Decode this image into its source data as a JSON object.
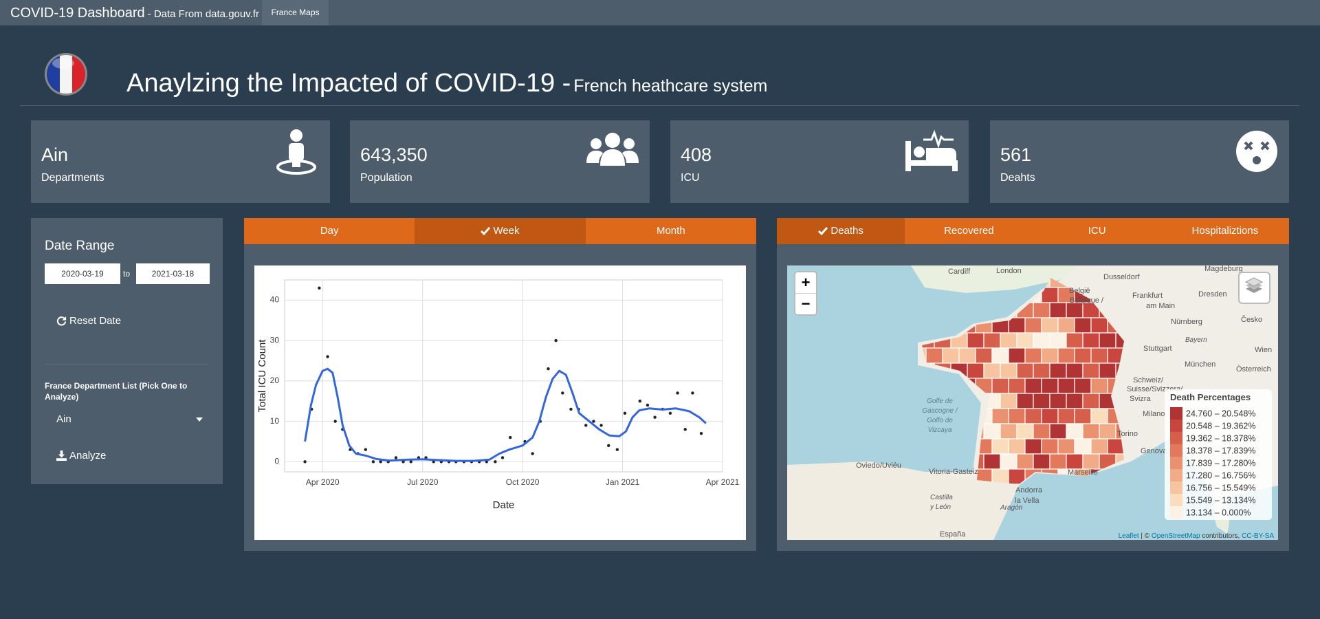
{
  "navbar": {
    "brand": "COVID-19 Dashboard",
    "brand_sub": "- Data From data.gouv.fr",
    "tabs": [
      "France Maps"
    ]
  },
  "header": {
    "title": "Anaylzing the Impacted of COVID-19 -",
    "subtitle": "French heathcare system"
  },
  "value_boxes": [
    {
      "value": "Ain",
      "label": "Departments"
    },
    {
      "value": "643,350",
      "label": "Population"
    },
    {
      "value": "408",
      "label": "ICU"
    },
    {
      "value": "561",
      "label": "Deahts"
    }
  ],
  "sidebar": {
    "title": "Date Range",
    "start_date": "2020-03-19",
    "separator": "to",
    "end_date": "2021-03-18",
    "reset_button": "Reset Date",
    "select_label": "France Department List (Pick One to Analyze)",
    "selected": "Ain",
    "analyze_button": "Analyze"
  },
  "chart_tabs": {
    "tabs": [
      "Day",
      "Week",
      "Month"
    ],
    "active": 1
  },
  "chart_data": {
    "type": "scatter",
    "xlabel": "Date",
    "ylabel": "Total ICU Count",
    "xlim": [
      -1.14,
      12
    ],
    "ylim": [
      -2.5,
      45
    ],
    "xticks": [
      {
        "value": 0,
        "label": "Apr 2020"
      },
      {
        "value": 3,
        "label": "Jul 2020"
      },
      {
        "value": 6,
        "label": "Oct 2020"
      },
      {
        "value": 9,
        "label": "Jan 2021"
      },
      {
        "value": 12,
        "label": "Apr 2021"
      }
    ],
    "yticks": [
      0,
      10,
      20,
      30,
      40
    ],
    "grid": true,
    "series": [
      {
        "type": "scatter",
        "color": "#222222",
        "x": [
          -0.53,
          -0.33,
          -0.1,
          0.15,
          0.38,
          0.6,
          0.83,
          1.06,
          1.29,
          1.52,
          1.74,
          1.97,
          2.2,
          2.42,
          2.65,
          2.88,
          3.1,
          3.33,
          3.56,
          3.79,
          4.0,
          4.24,
          4.47,
          4.7,
          4.92,
          5.18,
          5.4,
          5.63,
          6.07,
          6.3,
          6.53,
          6.77,
          7.0,
          7.2,
          7.45,
          7.68,
          7.9,
          8.13,
          8.36,
          8.58,
          8.84,
          9.07,
          9.52,
          9.75,
          9.97,
          10.2,
          10.43,
          10.65,
          10.88,
          11.1,
          11.36
        ],
        "values": [
          0,
          13,
          43,
          26,
          10,
          8,
          3,
          2,
          3,
          0,
          0,
          0,
          1,
          0,
          0,
          1,
          1,
          0,
          0,
          0,
          0,
          0,
          0,
          0,
          0,
          0,
          1,
          6,
          5,
          2,
          10,
          23,
          30,
          17,
          13,
          13,
          9,
          10,
          9,
          4,
          3,
          12,
          15,
          14,
          11,
          13,
          12,
          17,
          8,
          17,
          7
        ]
      },
      {
        "type": "line",
        "color": "#3366dd",
        "x": [
          -0.53,
          -0.35,
          -0.2,
          0,
          0.15,
          0.3,
          0.45,
          0.6,
          0.8,
          1.0,
          1.3,
          1.6,
          2.0,
          2.5,
          3.0,
          3.5,
          4.0,
          4.5,
          5.0,
          5.3,
          5.6,
          6.0,
          6.3,
          6.5,
          6.7,
          6.9,
          7.1,
          7.3,
          7.5,
          7.7,
          8.0,
          8.3,
          8.6,
          8.9,
          9.1,
          9.3,
          9.5,
          9.8,
          10.2,
          10.6,
          11.0,
          11.3,
          11.5
        ],
        "values": [
          5,
          14,
          19,
          22.5,
          23,
          22,
          16,
          9,
          4,
          2,
          1.5,
          0.7,
          0.3,
          0.5,
          0.6,
          0.4,
          0.2,
          0.2,
          0.5,
          2,
          3,
          4,
          6,
          10,
          16,
          20.5,
          22.5,
          21.5,
          17,
          12,
          10,
          8,
          6.5,
          6.3,
          7.5,
          11,
          12.7,
          13.2,
          12.9,
          13.2,
          12.5,
          11,
          9.5
        ]
      }
    ]
  },
  "map_tabs": {
    "tabs": [
      "Deaths",
      "Recovered",
      "ICU",
      "Hospitaliztions"
    ],
    "active": 0
  },
  "map": {
    "zoom_in": "+",
    "zoom_out": "−",
    "places": [
      "Cardiff",
      "London",
      "Dusseldorf",
      "Magdeburg",
      "België",
      "Belgique /",
      "Frankfurt",
      "am Main",
      "Dresden",
      "Nürnberg",
      "Česko",
      "Bayern",
      "München",
      "Wien",
      "Österreich",
      "Stuttgart",
      "Schweiz/",
      "Suisse/Svizzera/",
      "Svizra",
      "Milano",
      "Torino",
      "Genova",
      "Golfe de",
      "Gascogne /",
      "Golfo de",
      "Vizcaya",
      "Oviedo/Uviéu",
      "Vitoria-Gasteiz",
      "Andorra",
      "la Vella",
      "Marseille",
      "Castilla",
      "y León",
      "Aragón",
      "España"
    ],
    "legend": {
      "title": "Death Percentages",
      "items": [
        {
          "label": "24.760 – 20.548%",
          "color": "#b03434"
        },
        {
          "label": "20.548 – 19.362%",
          "color": "#c8463d"
        },
        {
          "label": "19.362 – 18.378%",
          "color": "#d65f4b"
        },
        {
          "label": "18.378 – 17.839%",
          "color": "#e2795c"
        },
        {
          "label": "17.839 – 17.280%",
          "color": "#ea926f"
        },
        {
          "label": "17.280 – 16.756%",
          "color": "#f1ab86"
        },
        {
          "label": "16.756 – 15.549%",
          "color": "#f6c59f"
        },
        {
          "label": "15.549 – 13.134%",
          "color": "#f9ddbd"
        },
        {
          "label": "13.134 – 0.000%",
          "color": "#fbf1e4"
        }
      ]
    },
    "attribution": [
      "Leaflet",
      " | © ",
      "OpenStreetMap",
      " contributors, ",
      "CC-BY-SA"
    ]
  }
}
